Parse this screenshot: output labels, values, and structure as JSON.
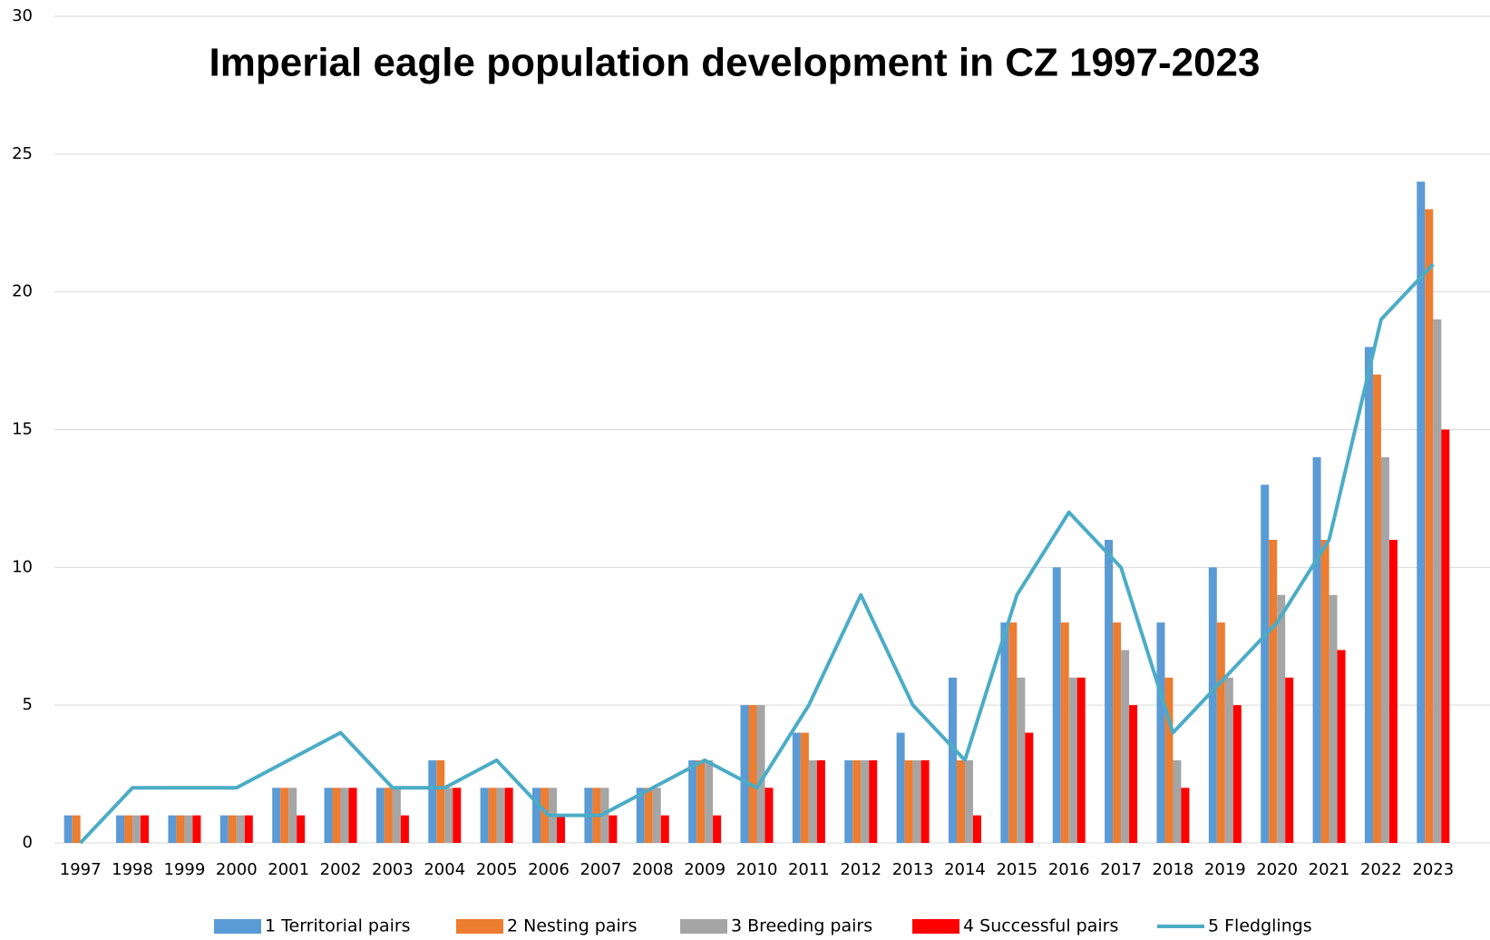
{
  "chart_data": {
    "type": "bar",
    "title": "Imperial eagle population development in CZ 1997-2023",
    "categories": [
      "1997",
      "1998",
      "1999",
      "2000",
      "2001",
      "2002",
      "2003",
      "2004",
      "2005",
      "2006",
      "2007",
      "2008",
      "2009",
      "2010",
      "2011",
      "2012",
      "2013",
      "2014",
      "2015",
      "2016",
      "2017",
      "2018",
      "2019",
      "2020",
      "2021",
      "2022",
      "2023"
    ],
    "series": [
      {
        "name": "1 Territorial pairs",
        "color": "#5b9bd5",
        "values": [
          1,
          1,
          1,
          1,
          2,
          2,
          2,
          3,
          2,
          2,
          2,
          2,
          3,
          5,
          4,
          3,
          4,
          6,
          8,
          10,
          11,
          8,
          10,
          13,
          14,
          18,
          24
        ]
      },
      {
        "name": "2 Nesting pairs",
        "color": "#ed7d31",
        "values": [
          1,
          1,
          1,
          1,
          2,
          2,
          2,
          3,
          2,
          2,
          2,
          2,
          3,
          5,
          4,
          3,
          3,
          3,
          8,
          8,
          8,
          6,
          8,
          11,
          11,
          17,
          23
        ]
      },
      {
        "name": "3 Breeding pairs",
        "color": "#a5a5a5",
        "values": [
          0,
          1,
          1,
          1,
          2,
          2,
          2,
          2,
          2,
          2,
          2,
          2,
          3,
          5,
          3,
          3,
          3,
          3,
          6,
          6,
          7,
          3,
          6,
          9,
          9,
          14,
          19
        ]
      },
      {
        "name": "4 Successful pairs",
        "color": "#ff0000",
        "values": [
          0,
          1,
          1,
          1,
          1,
          2,
          1,
          2,
          2,
          1,
          1,
          1,
          1,
          2,
          3,
          3,
          3,
          1,
          4,
          6,
          5,
          2,
          5,
          6,
          7,
          11,
          15
        ]
      },
      {
        "name": "5 Fledglings",
        "color": "#4bacc6",
        "type": "line",
        "values": [
          0,
          2,
          2,
          2,
          3,
          4,
          2,
          2,
          3,
          1,
          1,
          2,
          3,
          2,
          5,
          9,
          5,
          3,
          9,
          12,
          10,
          4,
          6,
          8,
          11,
          19,
          21
        ]
      }
    ],
    "ylim": [
      0,
      30
    ],
    "yticks": [
      0,
      5,
      10,
      15,
      20,
      25,
      30
    ],
    "grid": true,
    "legend": "bottom"
  }
}
